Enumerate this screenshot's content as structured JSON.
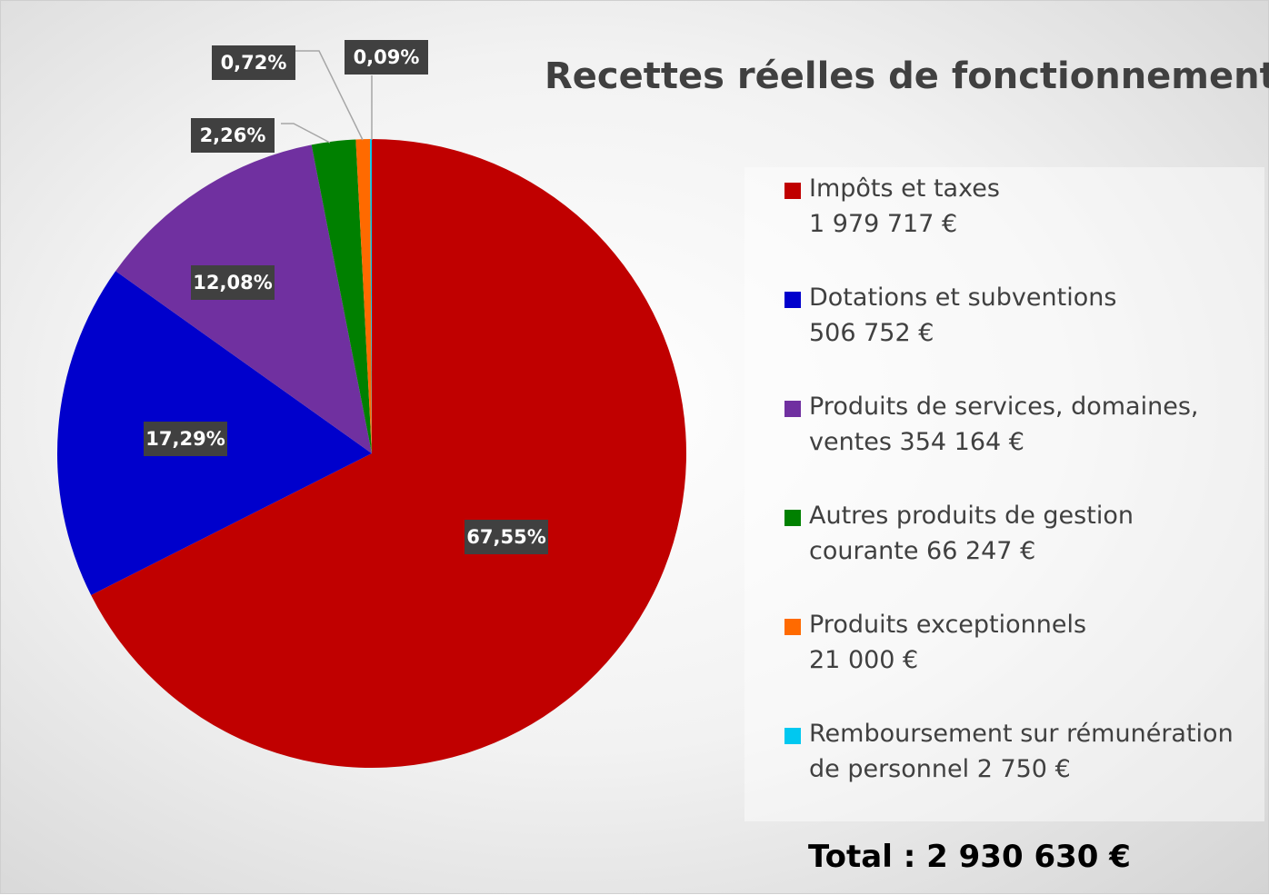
{
  "chart_data": {
    "type": "pie",
    "title": "Recettes réelles de fonctionnement",
    "categories": [
      "Impôts et taxes\n1 979 717  €",
      "Dotations et subventions\n506 752 €",
      "Produits de services, domaines,\nventes 354 164 €",
      "Autres produits de gestion\ncourante 66 247 €",
      "Produits exceptionnels\n21 000 €",
      "Remboursement sur rémunération\nde personnel 2 750 €"
    ],
    "values": [
      67.55,
      17.29,
      12.08,
      2.26,
      0.72,
      0.09
    ],
    "value_labels": [
      "67,55%",
      "17,29%",
      "12,08%",
      "2,26%",
      "0,72%",
      "0,09%"
    ],
    "colors": [
      "#c00000",
      "#0000cc",
      "#7030a0",
      "#008000",
      "#ff6a00",
      "#00c8f0"
    ],
    "legend": "right",
    "annotation": "Total : 2 930 630 €"
  }
}
